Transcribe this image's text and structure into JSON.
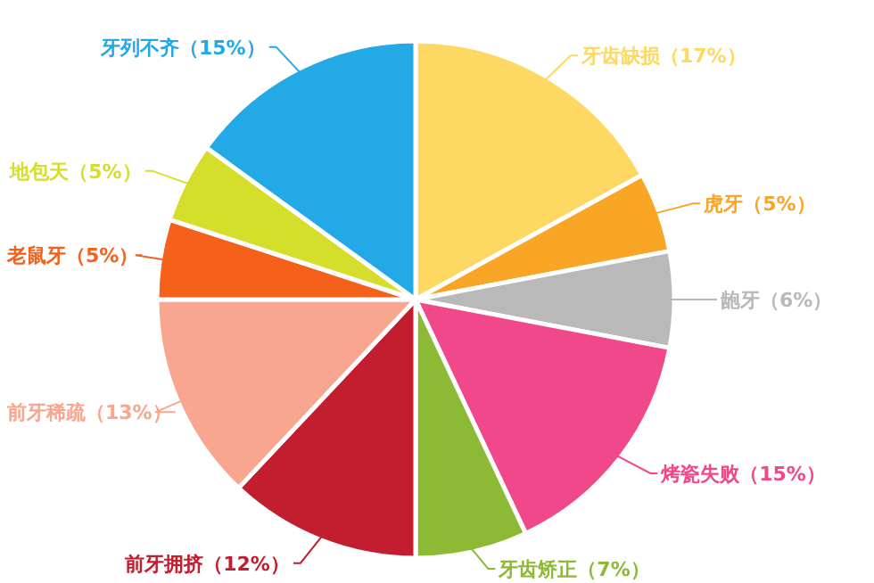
{
  "chart_data": {
    "type": "pie",
    "categories": [
      "牙齿缺损（17%）",
      "虎牙（5%）",
      "龅牙（6%）",
      "烤瓷失败（15%）",
      "牙齿矫正（7%）",
      "前牙拥挤（12%）",
      "前牙稀疏（13%）",
      "老鼠牙（5%）",
      "地包天（5%）",
      "牙列不齐（15%）"
    ],
    "values": [
      17,
      5,
      6,
      15,
      7,
      12,
      13,
      5,
      5,
      15
    ],
    "colors": [
      "#fdd862",
      "#f9a526",
      "#b9b9b9",
      "#f1478b",
      "#8cba34",
      "#c21e30",
      "#f9a690",
      "#f5611a",
      "#d6de2c",
      "#22a9e6"
    ]
  }
}
